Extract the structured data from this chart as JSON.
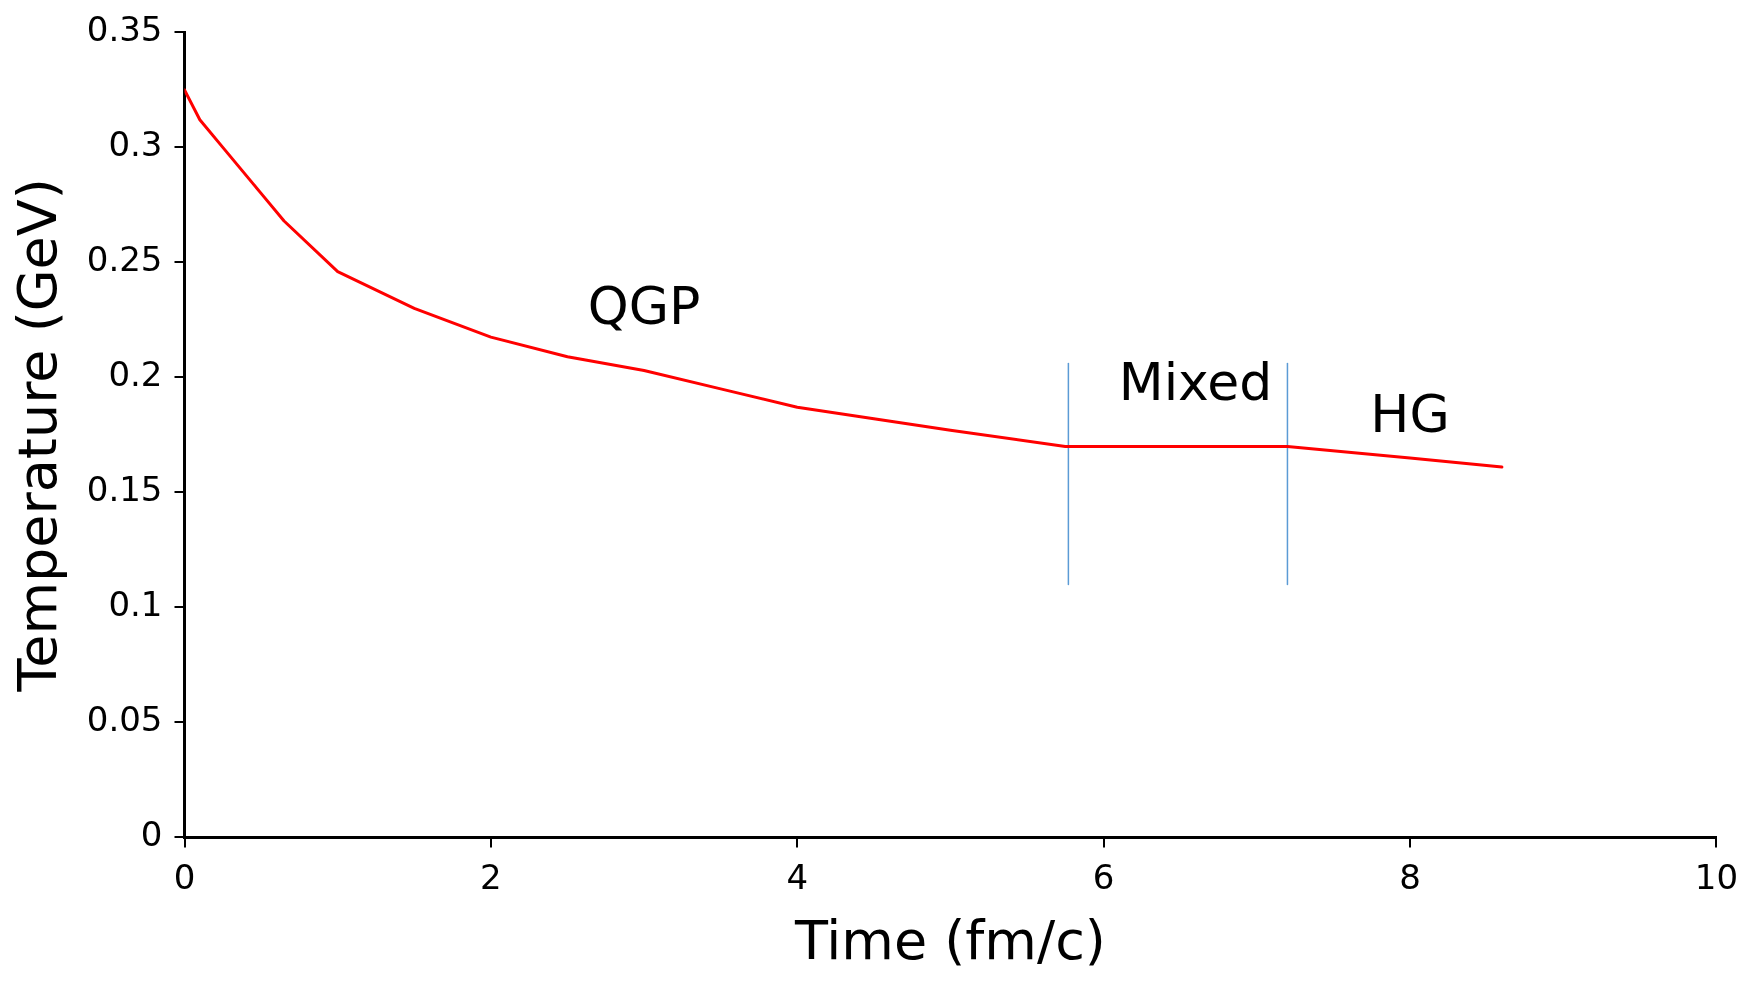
{
  "chart_data": {
    "type": "line",
    "xlabel": "Time (fm/c)",
    "ylabel": "Temperature (GeV)",
    "xlim": [
      0,
      10
    ],
    "xticks": [
      0,
      2,
      4,
      6,
      8,
      10
    ],
    "ylim": [
      0,
      0.35
    ],
    "yticks": [
      0,
      0.05,
      0.1,
      0.15,
      0.2,
      0.25,
      0.3,
      0.35
    ],
    "grid": false,
    "legend": false,
    "marker": "none",
    "line_style": "solid",
    "series": [
      {
        "color": "#ff0000",
        "x": [
          0,
          0.1,
          0.25,
          0.5,
          0.65,
          1,
          1.5,
          2,
          2.5,
          3,
          3.5,
          4,
          4.5,
          5,
          5.75,
          6.5,
          7.2,
          8,
          8.6
        ],
        "values": [
          0.325,
          0.312,
          0.3,
          0.28,
          0.268,
          0.246,
          0.23,
          0.2175,
          0.209,
          0.203,
          0.195,
          0.187,
          0.182,
          0.177,
          0.17,
          0.17,
          0.17,
          0.165,
          0.161
        ]
      },
      {
        "color": "#5b9bd5",
        "x": [
          5.77,
          5.77
        ],
        "values": [
          0.11,
          0.206
        ]
      },
      {
        "color": "#5b9bd5",
        "x": [
          7.2,
          7.2
        ],
        "values": [
          0.11,
          0.206
        ]
      }
    ],
    "annotations": [
      "QGP",
      "Mixed",
      "HG"
    ]
  }
}
